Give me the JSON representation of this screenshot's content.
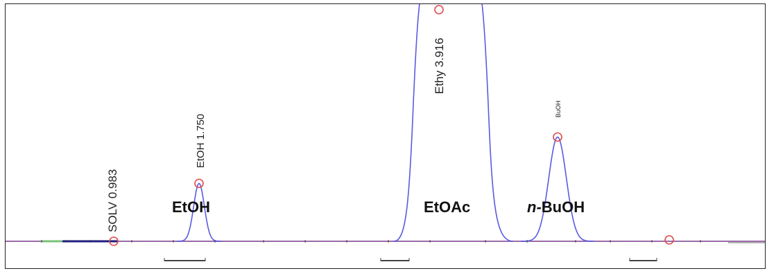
{
  "chart_data": {
    "type": "line",
    "title": "",
    "xlabel": "",
    "ylabel": "",
    "colors": {
      "trace": "#5a5ae0",
      "marker": "#e04b4b",
      "baseline": "#7a4a8a"
    },
    "peaks": [
      {
        "id": "solv",
        "retention_time": 0.983,
        "height": 0.0,
        "label": "SOLV 0.983",
        "compound": ""
      },
      {
        "id": "etoh",
        "retention_time": 1.75,
        "height": 0.25,
        "label": "EtOH 1.750",
        "compound": "EtOH"
      },
      {
        "id": "ethy",
        "retention_time": 3.916,
        "height": 1.0,
        "label": "Ethy 3.916",
        "compound": "EtOAc"
      },
      {
        "id": "buoh",
        "retention_time": null,
        "height": 0.45,
        "label": "BuOH",
        "compound": "BuOH"
      },
      {
        "id": "end",
        "retention_time": null,
        "height": 0.0,
        "label": "",
        "compound": ""
      }
    ],
    "compound_prefix": {
      "buoh": "n-"
    }
  }
}
